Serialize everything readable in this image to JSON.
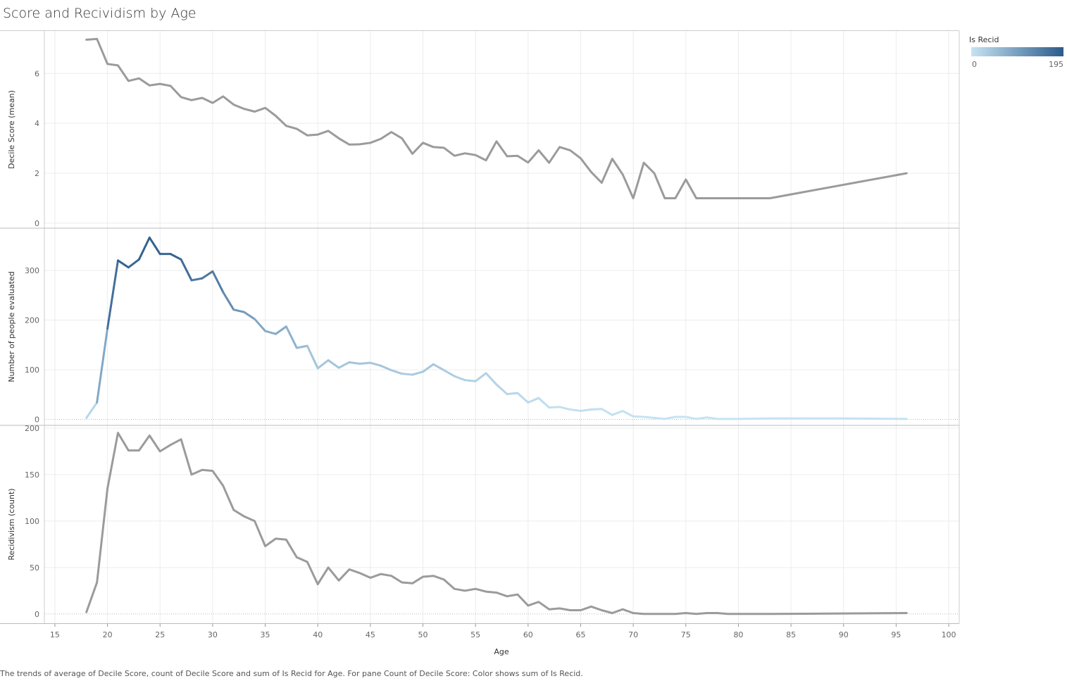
{
  "title": "Score and Recividism by Age",
  "caption": "The trends of average of Decile Score, count of Decile Score and sum of Is Recid for Age.  For pane Count of Decile Score:  Color shows sum of Is Recid.",
  "legend": {
    "title": "Is Recid",
    "min_label": "0",
    "max_label": "195",
    "color_low": "#c6e3f3",
    "color_high": "#2c5b8a"
  },
  "colors": {
    "line_gray": "#9b9b9b",
    "grid": "#ececec",
    "axis": "#999999"
  },
  "chart_data": {
    "type": "line",
    "x": {
      "label": "Age",
      "range": [
        14,
        101
      ],
      "ticks": [
        15,
        20,
        25,
        30,
        35,
        40,
        45,
        50,
        55,
        60,
        65,
        70,
        75,
        80,
        85,
        90,
        95,
        100
      ]
    },
    "panes": [
      {
        "ylabel": "Decile Score (mean)",
        "yrange": [
          -0.2,
          7.7
        ],
        "yticks": [
          0,
          2,
          4,
          6
        ],
        "color": "gray",
        "points": [
          [
            18,
            7.35
          ],
          [
            19,
            7.38
          ],
          [
            20,
            6.38
          ],
          [
            21,
            6.32
          ],
          [
            22,
            5.7
          ],
          [
            23,
            5.8
          ],
          [
            24,
            5.52
          ],
          [
            25,
            5.58
          ],
          [
            26,
            5.5
          ],
          [
            27,
            5.05
          ],
          [
            28,
            4.93
          ],
          [
            29,
            5.02
          ],
          [
            30,
            4.82
          ],
          [
            31,
            5.08
          ],
          [
            32,
            4.75
          ],
          [
            33,
            4.58
          ],
          [
            34,
            4.47
          ],
          [
            35,
            4.62
          ],
          [
            36,
            4.3
          ],
          [
            37,
            3.9
          ],
          [
            38,
            3.78
          ],
          [
            39,
            3.52
          ],
          [
            40,
            3.55
          ],
          [
            41,
            3.7
          ],
          [
            42,
            3.4
          ],
          [
            43,
            3.15
          ],
          [
            44,
            3.16
          ],
          [
            45,
            3.22
          ],
          [
            46,
            3.38
          ],
          [
            47,
            3.65
          ],
          [
            48,
            3.4
          ],
          [
            49,
            2.78
          ],
          [
            50,
            3.22
          ],
          [
            51,
            3.05
          ],
          [
            52,
            3.02
          ],
          [
            53,
            2.7
          ],
          [
            54,
            2.8
          ],
          [
            55,
            2.73
          ],
          [
            56,
            2.52
          ],
          [
            57,
            3.28
          ],
          [
            58,
            2.68
          ],
          [
            59,
            2.7
          ],
          [
            60,
            2.43
          ],
          [
            61,
            2.92
          ],
          [
            62,
            2.42
          ],
          [
            63,
            3.05
          ],
          [
            64,
            2.92
          ],
          [
            65,
            2.6
          ],
          [
            66,
            2.05
          ],
          [
            67,
            1.62
          ],
          [
            68,
            2.58
          ],
          [
            69,
            1.95
          ],
          [
            70,
            1.0
          ],
          [
            71,
            2.42
          ],
          [
            72,
            2.0
          ],
          [
            73,
            1.0
          ],
          [
            74,
            1.0
          ],
          [
            75,
            1.75
          ],
          [
            76,
            1.0
          ],
          [
            77,
            1.0
          ],
          [
            78,
            1.0
          ],
          [
            79,
            1.0
          ],
          [
            80,
            1.0
          ],
          [
            81,
            1.0
          ],
          [
            82,
            1.0
          ],
          [
            83,
            1.0
          ],
          [
            96,
            2.0
          ]
        ]
      },
      {
        "ylabel": "Number of people evaluated",
        "yrange": [
          -12,
          385
        ],
        "yticks": [
          0,
          100,
          200,
          300
        ],
        "color": "gradient",
        "points": [
          [
            18,
            3,
            2
          ],
          [
            19,
            34,
            34
          ],
          [
            20,
            183,
            135
          ],
          [
            21,
            320,
            195
          ],
          [
            22,
            306,
            176
          ],
          [
            23,
            322,
            176
          ],
          [
            24,
            366,
            192
          ],
          [
            25,
            333,
            175
          ],
          [
            26,
            333,
            182
          ],
          [
            27,
            322,
            188
          ],
          [
            28,
            280,
            150
          ],
          [
            29,
            284,
            155
          ],
          [
            30,
            298,
            154
          ],
          [
            31,
            256,
            138
          ],
          [
            32,
            221,
            112
          ],
          [
            33,
            216,
            105
          ],
          [
            34,
            202,
            100
          ],
          [
            35,
            178,
            73
          ],
          [
            36,
            172,
            81
          ],
          [
            37,
            187,
            80
          ],
          [
            38,
            144,
            61
          ],
          [
            39,
            148,
            56
          ],
          [
            40,
            103,
            32
          ],
          [
            41,
            119,
            50
          ],
          [
            42,
            104,
            36
          ],
          [
            43,
            115,
            48
          ],
          [
            44,
            112,
            44
          ],
          [
            45,
            114,
            39
          ],
          [
            46,
            108,
            43
          ],
          [
            47,
            99,
            41
          ],
          [
            48,
            92,
            34
          ],
          [
            49,
            90,
            33
          ],
          [
            50,
            96,
            40
          ],
          [
            51,
            111,
            41
          ],
          [
            52,
            99,
            37
          ],
          [
            53,
            87,
            27
          ],
          [
            54,
            79,
            25
          ],
          [
            55,
            77,
            27
          ],
          [
            56,
            93,
            24
          ],
          [
            57,
            70,
            23
          ],
          [
            58,
            51,
            19
          ],
          [
            59,
            53,
            21
          ],
          [
            60,
            34,
            9
          ],
          [
            61,
            43,
            13
          ],
          [
            62,
            24,
            5
          ],
          [
            63,
            25,
            6
          ],
          [
            64,
            20,
            4
          ],
          [
            65,
            17,
            4
          ],
          [
            66,
            20,
            8
          ],
          [
            67,
            21,
            4
          ],
          [
            68,
            9,
            1
          ],
          [
            69,
            17,
            5
          ],
          [
            70,
            6,
            1
          ],
          [
            71,
            5,
            0
          ],
          [
            72,
            3,
            0
          ],
          [
            73,
            1,
            0
          ],
          [
            74,
            5,
            0
          ],
          [
            75,
            5,
            1
          ],
          [
            76,
            1,
            0
          ],
          [
            77,
            4,
            1
          ],
          [
            78,
            1,
            1
          ],
          [
            79,
            1,
            0
          ],
          [
            80,
            1,
            0
          ],
          [
            83,
            2,
            0
          ],
          [
            90,
            2,
            0.5
          ],
          [
            96,
            1,
            1
          ]
        ]
      },
      {
        "ylabel": "Recidivism (count)",
        "yrange": [
          -10,
          203
        ],
        "yticks": [
          0,
          50,
          100,
          150,
          200
        ],
        "color": "gray",
        "points": [
          [
            18,
            2
          ],
          [
            19,
            34
          ],
          [
            20,
            135
          ],
          [
            21,
            195
          ],
          [
            22,
            176
          ],
          [
            23,
            176
          ],
          [
            24,
            192
          ],
          [
            25,
            175
          ],
          [
            26,
            182
          ],
          [
            27,
            188
          ],
          [
            28,
            150
          ],
          [
            29,
            155
          ],
          [
            30,
            154
          ],
          [
            31,
            138
          ],
          [
            32,
            112
          ],
          [
            33,
            105
          ],
          [
            34,
            100
          ],
          [
            35,
            73
          ],
          [
            36,
            81
          ],
          [
            37,
            80
          ],
          [
            38,
            61
          ],
          [
            39,
            56
          ],
          [
            40,
            32
          ],
          [
            41,
            50
          ],
          [
            42,
            36
          ],
          [
            43,
            48
          ],
          [
            44,
            44
          ],
          [
            45,
            39
          ],
          [
            46,
            43
          ],
          [
            47,
            41
          ],
          [
            48,
            34
          ],
          [
            49,
            33
          ],
          [
            50,
            40
          ],
          [
            51,
            41
          ],
          [
            52,
            37
          ],
          [
            53,
            27
          ],
          [
            54,
            25
          ],
          [
            55,
            27
          ],
          [
            56,
            24
          ],
          [
            57,
            23
          ],
          [
            58,
            19
          ],
          [
            59,
            21
          ],
          [
            60,
            9
          ],
          [
            61,
            13
          ],
          [
            62,
            5
          ],
          [
            63,
            6
          ],
          [
            64,
            4
          ],
          [
            65,
            4
          ],
          [
            66,
            8
          ],
          [
            67,
            4
          ],
          [
            68,
            1
          ],
          [
            69,
            5
          ],
          [
            70,
            1
          ],
          [
            71,
            0
          ],
          [
            72,
            0
          ],
          [
            73,
            0
          ],
          [
            74,
            0
          ],
          [
            75,
            1
          ],
          [
            76,
            0
          ],
          [
            77,
            1
          ],
          [
            78,
            1
          ],
          [
            79,
            0
          ],
          [
            80,
            0
          ],
          [
            83,
            0
          ],
          [
            96,
            1
          ]
        ]
      }
    ]
  }
}
